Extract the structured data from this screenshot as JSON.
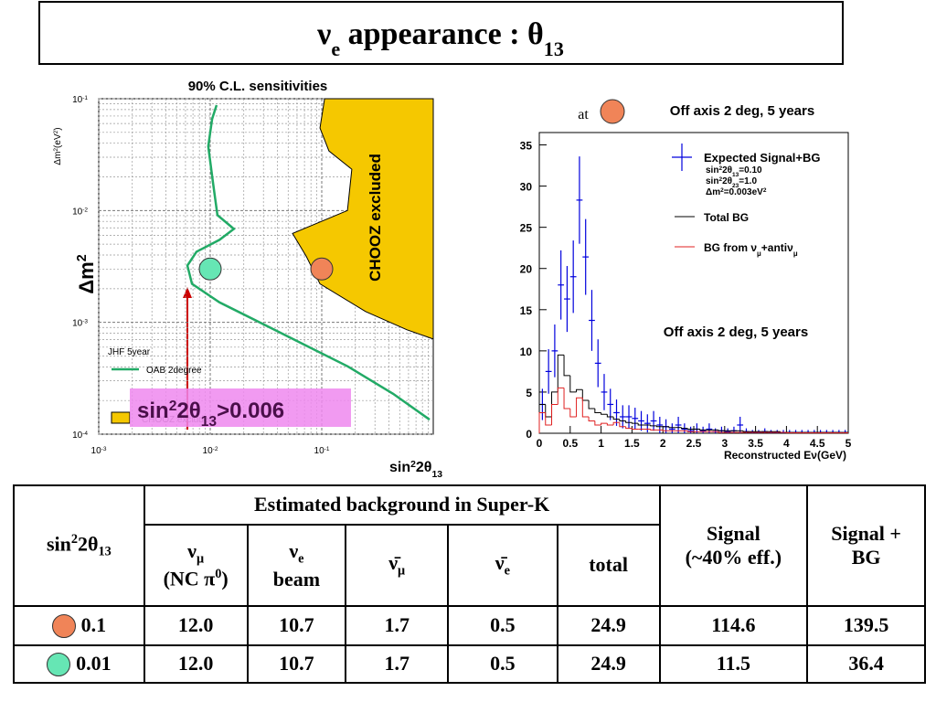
{
  "title": [
    "ν",
    {
      "sub": "e"
    },
    " appearance : θ",
    {
      "sub": "13"
    }
  ],
  "chart_data": [
    {
      "type": "line",
      "title": "90% C.L. sensitivities",
      "xlabel": [
        "sin",
        {
          "sup": "2"
        },
        "2θ",
        {
          "sub": "13"
        }
      ],
      "ylabel": [
        "Δm",
        {
          "sup": "2"
        }
      ],
      "yunit_label": [
        "Δm",
        {
          "sup": "2"
        },
        "(eV",
        {
          "sup": "2"
        },
        ")"
      ],
      "xlog": true,
      "ylog": true,
      "xlim": [
        0.001,
        1
      ],
      "ylim": [
        0.0001,
        0.1
      ],
      "xticks": [
        {
          "value": 0.001,
          "label": [
            "10",
            {
              "sup": "-3"
            }
          ]
        },
        {
          "value": 0.01,
          "label": [
            "10",
            {
              "sup": "-2"
            }
          ]
        },
        {
          "value": 0.1,
          "label": [
            "10",
            {
              "sup": "-1"
            }
          ]
        }
      ],
      "yticks": [
        {
          "value": 0.0001,
          "label": [
            "10",
            {
              "sup": "-4"
            }
          ]
        },
        {
          "value": 0.001,
          "label": [
            "10",
            {
              "sup": "-3"
            }
          ]
        },
        {
          "value": 0.01,
          "label": [
            "10",
            {
              "sup": "-2"
            }
          ]
        },
        {
          "value": 0.1,
          "label": [
            "10",
            {
              "sup": "-1"
            }
          ]
        }
      ],
      "grid": true,
      "legend_title": "JHF 5year",
      "series": [
        {
          "name": "OAB 2degree",
          "color": "#22aa66",
          "x": [
            0.0114,
            0.0104,
            0.0096,
            0.0106,
            0.0116,
            0.0163,
            0.0121,
            0.00753,
            0.00624,
            0.00686,
            0.0121,
            0.0375,
            0.17,
            0.436,
            0.927
          ],
          "values": [
            0.0877,
            0.066,
            0.0375,
            0.0176,
            0.0091,
            0.00685,
            0.00547,
            0.00428,
            0.00322,
            0.00221,
            0.00151,
            0.00086,
            0.000405,
            0.00023,
            0.000135
          ]
        },
        {
          "name": "CHOOZ excluded",
          "type": "area",
          "color": "#f5c800",
          "x": [
            0.106,
            0.0964,
            0.116,
            0.186,
            0.17,
            0.0547,
            0.0727,
            0.0964,
            0.247,
            0.578,
            1.0
          ],
          "values": [
            0.1,
            0.0547,
            0.0341,
            0.0234,
            0.01,
            0.00624,
            0.00389,
            0.00221,
            0.00125,
            0.00086,
            0.00071
          ]
        }
      ],
      "markers": [
        {
          "x": 0.1,
          "y": 0.003,
          "color": "#f08458"
        },
        {
          "x": 0.01,
          "y": 0.003,
          "color": "#66e6b4"
        }
      ],
      "annotations": [
        "CHOOZ excluded",
        [
          "sin",
          {
            "sup": "2"
          },
          "2θ",
          {
            "sub": "13"
          },
          ">0.006"
        ]
      ]
    },
    {
      "type": "histogram",
      "xlabel": "Reconstructed Eν(GeV)",
      "xlim": [
        0,
        5
      ],
      "ylim": [
        0,
        36.5
      ],
      "xticks": [
        0,
        0.5,
        1,
        1.5,
        2,
        2.5,
        3,
        3.5,
        4,
        4.5,
        5
      ],
      "yticks": [
        0,
        5,
        10,
        15,
        20,
        25,
        30,
        35
      ],
      "bins": [
        0,
        0.1,
        0.2,
        0.3,
        0.4,
        0.5,
        0.6,
        0.7,
        0.8,
        0.9,
        1.0,
        1.1,
        1.2,
        1.3,
        1.4,
        1.5,
        1.6,
        1.7,
        1.8,
        1.9,
        2.0,
        2.1,
        2.2,
        2.3,
        2.4,
        2.5,
        2.6,
        2.7,
        2.8,
        2.9,
        3.0,
        3.1,
        3.2,
        3.3,
        3.4,
        3.5,
        3.6,
        3.7,
        3.8,
        3.9,
        4.0,
        4.1,
        4.2,
        4.3,
        4.4,
        4.5,
        4.6,
        4.7,
        4.8,
        4.9,
        5.0
      ],
      "series": [
        {
          "name": "Expected Signal+BG",
          "style": "errorbar",
          "color": "#0000dd",
          "values": [
            3.5,
            7.5,
            10,
            18,
            16.3,
            19,
            28.3,
            21.4,
            13.7,
            8.5,
            5,
            3.5,
            2.5,
            2,
            2,
            1.8,
            1.5,
            1.2,
            1.5,
            1,
            0.8,
            0.5,
            1,
            0.5,
            0.3,
            0.5,
            0.3,
            0.5,
            0.2,
            0.3,
            0.2,
            0.3,
            1,
            0.2,
            0.1,
            0.1,
            0.2,
            0.1,
            0.1,
            0.1,
            0.1,
            0.1,
            0.1,
            0.1,
            0.1,
            0.1,
            0.1,
            0.1,
            0.1,
            0.1
          ],
          "errors": [
            1.9,
            2.7,
            3.2,
            4.2,
            4,
            4.4,
            5.3,
            4.6,
            3.7,
            2.9,
            2.2,
            1.9,
            1.6,
            1.4,
            1.4,
            1.3,
            1.2,
            1.1,
            1.2,
            1,
            0.9,
            0.7,
            1,
            0.7,
            0.5,
            0.7,
            0.5,
            0.7,
            0.4,
            0.5,
            0.4,
            0.5,
            1,
            0.4,
            0.3,
            0.3,
            0.4,
            0.3,
            0.3,
            0.3,
            0.3,
            0.3,
            0.3,
            0.3,
            0.3,
            0.3,
            0.3,
            0.3,
            0.3,
            0.3
          ]
        },
        {
          "name": "Total BG",
          "style": "step",
          "color": "#000000",
          "values": [
            3.5,
            2,
            5,
            9.5,
            7,
            5,
            5.3,
            4,
            3,
            2.5,
            2.3,
            2,
            1.7,
            1.5,
            1.3,
            1.2,
            1,
            1,
            0.9,
            0.8,
            0.8,
            0.7,
            0.7,
            0.6,
            0.5,
            0.5,
            0.4,
            0.4,
            0.4,
            0.3,
            0.3,
            0.3,
            0.3,
            0.2,
            0.2,
            0.2,
            0.2,
            0.2,
            0.2,
            0.1,
            0.1,
            0.1,
            0.1,
            0.1,
            0.1,
            0.1,
            0.1,
            0.1,
            0.1,
            0.1
          ]
        },
        {
          "name": [
            "BG from ν",
            {
              "sub": "μ"
            },
            "+antiν",
            {
              "sub": "μ"
            }
          ],
          "style": "step",
          "color": "#e02020",
          "values": [
            2.5,
            1,
            3.5,
            5.5,
            3,
            2,
            4.3,
            2,
            1.5,
            1,
            1.2,
            1,
            1.3,
            0.8,
            0.6,
            0.5,
            0.5,
            0.5,
            0.4,
            0.4,
            0.3,
            0.3,
            0.3,
            0.3,
            0.2,
            0.2,
            0.2,
            0.2,
            0.2,
            0.1,
            0.1,
            0.1,
            0.1,
            0.1,
            0.1,
            0.1,
            0.1,
            0.1,
            0.1,
            0.1,
            0.05,
            0.05,
            0.05,
            0.05,
            0.05,
            0.05,
            0.05,
            0.05,
            0.05,
            0.05
          ]
        }
      ],
      "legend_notes": [
        [
          "sin",
          {
            "sup": "2"
          },
          "2θ",
          {
            "sub": "13"
          },
          "=0.10"
        ],
        [
          "sin",
          {
            "sup": "2"
          },
          "2θ",
          {
            "sub": "23"
          },
          "=1.0"
        ],
        [
          "Δm",
          {
            "sup": "2"
          },
          "=0.003eV",
          {
            "sup": "2"
          }
        ]
      ],
      "annotations": [
        "at",
        "Off axis 2 deg, 5 years",
        "Off axis 2 deg, 5 years"
      ]
    }
  ],
  "table": {
    "header": [
      [
        "sin",
        {
          "sup": "2"
        },
        "2θ",
        {
          "sub": "13"
        }
      ],
      "Estimated background in Super-K",
      "Signal\n(~40% eff.)",
      "Signal +\nBG"
    ],
    "subheader": [
      [
        "ν",
        {
          "sub": "μ"
        },
        "\n(NC π",
        {
          "sup": "0"
        },
        ")"
      ],
      [
        "ν",
        {
          "sub": "e"
        },
        "\nbeam"
      ],
      [
        "ν̄",
        {
          "sub": "μ"
        }
      ],
      [
        "ν̄",
        {
          "sub": "e"
        }
      ],
      "total"
    ],
    "rows": [
      [
        "0.1",
        "12.0",
        "10.7",
        "1.7",
        "0.5",
        "24.9",
        "114.6",
        "139.5"
      ],
      [
        "0.01",
        "12.0",
        "10.7",
        "1.7",
        "0.5",
        "24.9",
        "11.5",
        "36.4"
      ]
    ]
  }
}
